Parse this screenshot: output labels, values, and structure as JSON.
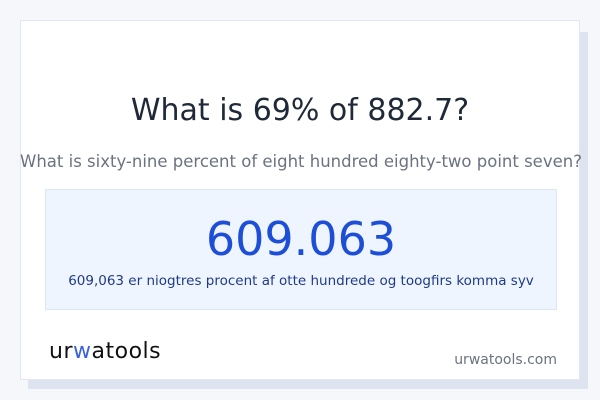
{
  "question": "What is 69% of 882.7?",
  "question_words": "What is sixty-nine percent of eight hundred eighty-two point seven?",
  "result": {
    "value": "609.063",
    "words": "609,063 er niogtres procent af otte hundrede og toogfirs komma syv"
  },
  "footer": {
    "logo": "urwatools",
    "site": "urwatools.com"
  },
  "colors": {
    "accent": "#1d4ed8",
    "result_bg": "#eef5ff"
  }
}
